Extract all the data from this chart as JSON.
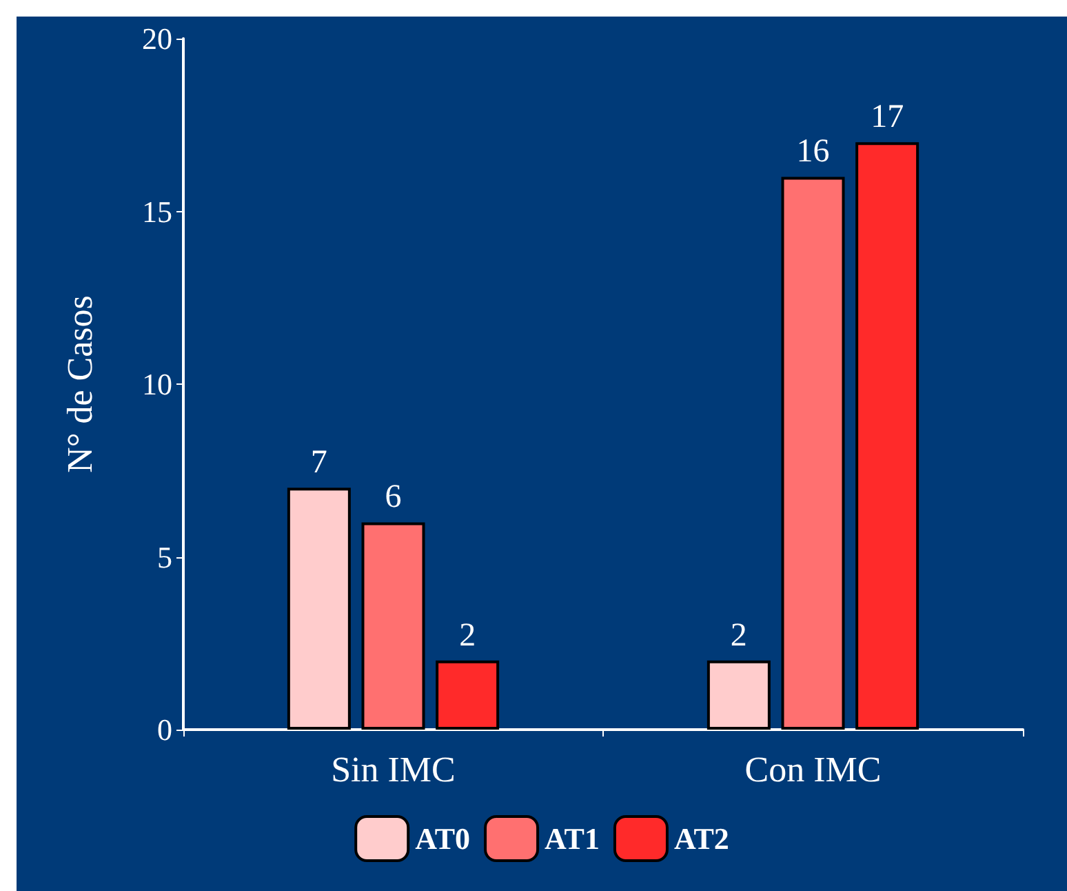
{
  "chart_data": {
    "type": "bar",
    "ylabel": "N° de Casos",
    "categories": [
      "Sin IMC",
      "Con IMC"
    ],
    "series": [
      {
        "name": "AT0",
        "color": "#ffcccc",
        "values": [
          7,
          2
        ]
      },
      {
        "name": "AT1",
        "color": "#ff7070",
        "values": [
          6,
          16
        ]
      },
      {
        "name": "AT2",
        "color": "#ff2a2a",
        "values": [
          2,
          17
        ]
      }
    ],
    "ylim": [
      0,
      20
    ],
    "yticks": [
      0,
      5,
      10,
      15,
      20
    ],
    "grid": false,
    "legend": "bottom",
    "data_labels": true
  }
}
